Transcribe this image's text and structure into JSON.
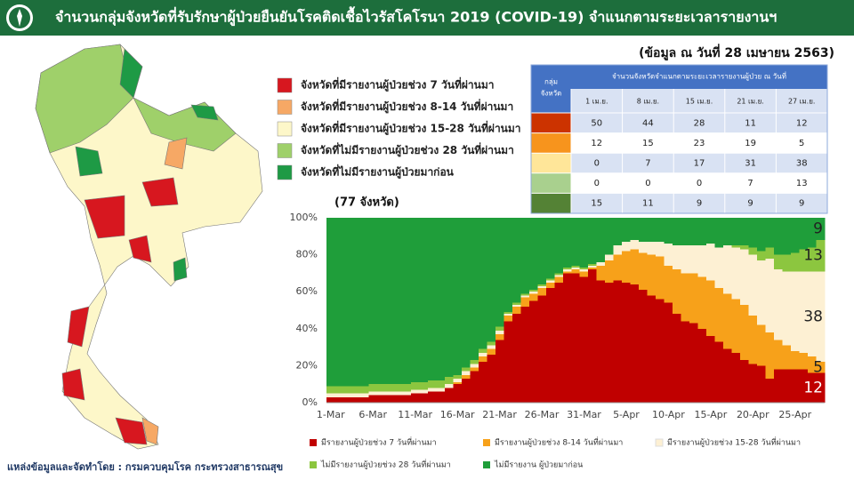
{
  "header": {
    "title": "จำนวนกลุ่มจังหวัดที่รับรักษาผู้ป่วยยืนยันโรคติดเชื้อไวรัสโคโรนา 2019 (COVID-19) จำแนกตามระยะเวลารายงานฯ"
  },
  "date_note": "(ข้อมูล ณ วันที่ 28 เมษายน 2563)",
  "map_legend": [
    {
      "label": "จังหวัดที่มีรายงานผู้ป่วยช่วง 7 วันที่ผ่านมา",
      "color": "#d7171f"
    },
    {
      "label": "จังหวัดที่มีรายงานผู้ป่วยช่วง 8-14 วันที่ผ่านมา",
      "color": "#f6a865"
    },
    {
      "label": "จังหวัดที่มีรายงานผู้ป่วยช่วง 15-28 วันที่ผ่านมา",
      "color": "#fdf7c9"
    },
    {
      "label": "จังหวัดที่ไม่มีรายงานผู้ป่วยช่วง 28 วันที่ผ่านมา",
      "color": "#9fd06a"
    },
    {
      "label": "จังหวัดที่ไม่มีรายงานผู้ป่วยมาก่อน",
      "color": "#1e9a45"
    }
  ],
  "table": {
    "group_header": [
      "กลุ่ม",
      "จังหวัด"
    ],
    "title": "จำนวนจังหวัดจำแนกตามระยะเวลารายงานผู้ป่วย  ณ วันที่",
    "dates": [
      "1 เม.ย.",
      "8 เม.ย.",
      "15 เม.ย.",
      "21 เม.ย.",
      "27 เม.ย."
    ],
    "row_colors": [
      "#cc3300",
      "#f7941d",
      "#ffe699",
      "#a9d08e",
      "#548235"
    ],
    "rows": [
      [
        50,
        44,
        28,
        11,
        12
      ],
      [
        12,
        15,
        23,
        19,
        5
      ],
      [
        0,
        7,
        17,
        31,
        38
      ],
      [
        0,
        0,
        0,
        7,
        13
      ],
      [
        15,
        11,
        9,
        9,
        9
      ]
    ]
  },
  "source": "แหล่งข้อมูลและจัดทำโดย : กรมควบคุมโรค กระทรวงสาธารณสุข",
  "chart_data": {
    "type": "stacked_area",
    "subtitle": "(77 จังหวัด)",
    "categories": [
      "1-Mar",
      null,
      null,
      null,
      null,
      "6-Mar",
      null,
      null,
      null,
      null,
      "11-Mar",
      null,
      null,
      null,
      null,
      "16-Mar",
      null,
      null,
      null,
      null,
      "21-Mar",
      null,
      null,
      null,
      null,
      "26-Mar",
      null,
      null,
      null,
      null,
      "31-Mar",
      null,
      null,
      null,
      null,
      "5-Apr",
      null,
      null,
      null,
      null,
      "10-Apr",
      null,
      null,
      null,
      null,
      "15-Apr",
      null,
      null,
      null,
      null,
      "20-Apr",
      null,
      null,
      null,
      null,
      "25-Apr",
      null,
      null,
      null
    ],
    "ylim": [
      0,
      100
    ],
    "yticks": [
      {
        "value": 0,
        "label": "0%"
      },
      {
        "value": 20,
        "label": "20%"
      },
      {
        "value": 40,
        "label": "40%"
      },
      {
        "value": 60,
        "label": "60%"
      },
      {
        "value": 80,
        "label": "80%"
      },
      {
        "value": 100,
        "label": "100%"
      }
    ],
    "grid": false,
    "series": [
      {
        "name": "มีรายงานผู้ป่วยช่วง 7 วันที่ผ่านมา",
        "color": "#c00000",
        "values": [
          3,
          3,
          3,
          3,
          3,
          4,
          4,
          4,
          4,
          4,
          5,
          5,
          6,
          6,
          8,
          10,
          13,
          17,
          22,
          26,
          34,
          44,
          48,
          52,
          55,
          58,
          62,
          65,
          70,
          70,
          68,
          72,
          66,
          65,
          66,
          65,
          64,
          61,
          58,
          56,
          54,
          48,
          44,
          43,
          40,
          36,
          33,
          29,
          27,
          23,
          21,
          20,
          13,
          18,
          18,
          18,
          18,
          16,
          16
        ]
      },
      {
        "name": "มีรายงานผู้ป่วยช่วง 8-14 วันที่ผ่านมา",
        "color": "#f7a11a",
        "values": [
          0,
          0,
          0,
          0,
          0,
          0,
          0,
          0,
          0,
          0,
          0,
          0,
          0,
          0,
          0,
          1,
          2,
          2,
          3,
          3,
          3,
          3,
          4,
          5,
          4,
          4,
          3,
          3,
          1,
          2,
          3,
          1,
          8,
          12,
          14,
          17,
          19,
          20,
          22,
          23,
          20,
          24,
          26,
          27,
          28,
          30,
          29,
          30,
          29,
          30,
          26,
          22,
          25,
          16,
          13,
          10,
          9,
          9,
          6
        ]
      },
      {
        "name": "มีรายงานผู้ป่วยช่วง 15-28 วันที่ผ่านมา",
        "color": "#fdf0d3",
        "values": [
          2,
          2,
          2,
          2,
          2,
          2,
          2,
          2,
          2,
          2,
          2,
          2,
          2,
          2,
          2,
          2,
          2,
          2,
          2,
          2,
          2,
          1,
          1,
          1,
          1,
          1,
          1,
          1,
          1,
          1,
          1,
          1,
          2,
          3,
          5,
          5,
          5,
          6,
          7,
          8,
          12,
          13,
          15,
          15,
          17,
          20,
          22,
          26,
          28,
          30,
          33,
          35,
          40,
          38,
          40,
          43,
          44,
          46,
          49
        ]
      },
      {
        "name": "ไม่มีรายงานผู้ป่วยช่วง 28 วันที่ผ่านมา",
        "color": "#8cc63f",
        "values": [
          4,
          4,
          4,
          4,
          4,
          4,
          4,
          4,
          4,
          4,
          4,
          4,
          4,
          4,
          4,
          2,
          2,
          2,
          2,
          2,
          2,
          1,
          1,
          1,
          1,
          1,
          1,
          1,
          1,
          1,
          1,
          1,
          0,
          0,
          0,
          0,
          0,
          0,
          0,
          0,
          0,
          0,
          0,
          0,
          0,
          0,
          0,
          0,
          1,
          2,
          4,
          5,
          6,
          8,
          9,
          10,
          12,
          13,
          17
        ]
      },
      {
        "name": "ไม่มีรายงาน ผู้ป่วยมาก่อน",
        "color": "#1f9e3a",
        "values": [
          91,
          91,
          91,
          91,
          91,
          90,
          90,
          90,
          90,
          90,
          89,
          89,
          88,
          88,
          86,
          85,
          81,
          77,
          71,
          67,
          59,
          51,
          46,
          41,
          39,
          36,
          33,
          30,
          27,
          26,
          27,
          25,
          24,
          20,
          15,
          13,
          12,
          13,
          13,
          13,
          14,
          15,
          15,
          15,
          15,
          14,
          16,
          15,
          15,
          15,
          16,
          18,
          16,
          20,
          20,
          19,
          17,
          16,
          12
        ]
      }
    ],
    "end_labels": [
      "12",
      "5",
      "38",
      "13",
      "9"
    ]
  }
}
